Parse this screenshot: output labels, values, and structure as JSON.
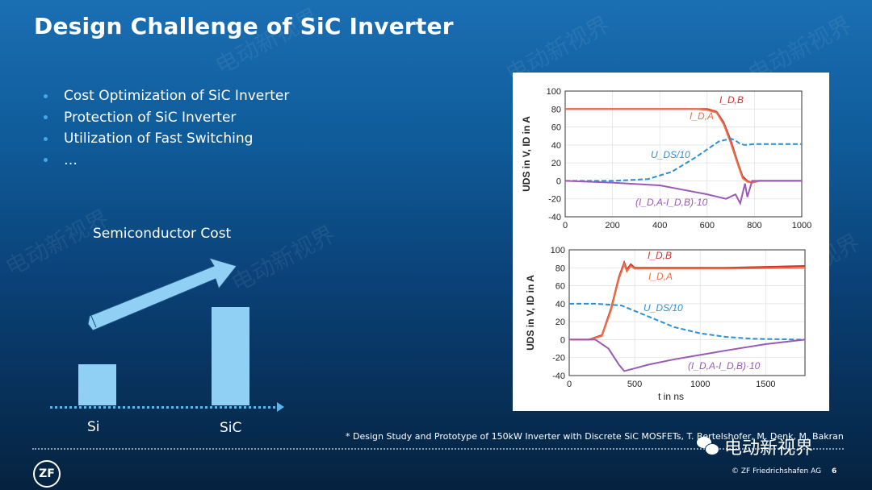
{
  "slide": {
    "title": "Design Challenge of SiC Inverter",
    "bullets": [
      "Cost Optimization of SiC Inverter",
      "Protection of SiC Inverter",
      "Utilization of Fast Switching",
      "…"
    ],
    "page_number": "6",
    "copyright": "© ZF Friedrichshafen AG",
    "footnote": "* Design Study and Prototype of 150kW Inverter with Discrete SiC MOSFETs, T. Bertelshofer, M. Denk, M. Bakran",
    "logo_text": "ZF",
    "wechat_account": "电动新视界",
    "watermark_text": "电动新视界"
  },
  "cost_chart": {
    "title": "Semiconductor Cost",
    "categories": [
      "Si",
      "SiC"
    ],
    "values": [
      1,
      2.4
    ]
  },
  "chart_data": [
    {
      "type": "line",
      "xlim": [
        0,
        1000
      ],
      "ylim": [
        -40,
        100
      ],
      "xticks": [
        0,
        200,
        400,
        600,
        800,
        1000
      ],
      "yticks": [
        -40,
        -20,
        0,
        20,
        40,
        60,
        80,
        100
      ],
      "ylabel": "UDS in V, ID in A",
      "series": [
        {
          "name": "I_D,B",
          "color": "#d0312d",
          "x": [
            0,
            200,
            400,
            550,
            600,
            640,
            670,
            700,
            730,
            750,
            770,
            790,
            820,
            1000
          ],
          "y": [
            80,
            80,
            80,
            80,
            80,
            77,
            65,
            45,
            20,
            5,
            0,
            -2,
            0,
            0
          ]
        },
        {
          "name": "I_D,A",
          "color": "#e8704a",
          "x": [
            0,
            200,
            400,
            550,
            600,
            640,
            670,
            700,
            730,
            750,
            770,
            790,
            820,
            1000
          ],
          "y": [
            80,
            80,
            80,
            80,
            79,
            76,
            63,
            42,
            18,
            3,
            -1,
            -2,
            0,
            0
          ]
        },
        {
          "name": "U_DS/10",
          "color": "#2d8fd6",
          "x": [
            0,
            200,
            350,
            450,
            550,
            650,
            700,
            720,
            740,
            760,
            800,
            1000
          ],
          "y": [
            0,
            0,
            2,
            10,
            26,
            44,
            47,
            45,
            41,
            40,
            41,
            41
          ]
        },
        {
          "name": "(I_D,A-I_D,B)·10",
          "color": "#9b59b6",
          "x": [
            0,
            200,
            400,
            500,
            600,
            680,
            720,
            740,
            760,
            770,
            790,
            1000
          ],
          "y": [
            0,
            -2,
            -5,
            -10,
            -15,
            -20,
            -15,
            -25,
            -3,
            -18,
            0,
            0
          ]
        }
      ],
      "labels": [
        "I_D,B",
        "I_D,A",
        "U_DS/10",
        "(I_D,A-I_D,B)·10"
      ]
    },
    {
      "type": "line",
      "xlim": [
        0,
        1800
      ],
      "ylim": [
        -40,
        100
      ],
      "xticks": [
        0,
        500,
        1000,
        1500
      ],
      "yticks": [
        -40,
        -20,
        0,
        20,
        40,
        60,
        80,
        100
      ],
      "xlabel": "t in ns",
      "ylabel": "UDS in V, ID in A",
      "series": [
        {
          "name": "I_D,B",
          "color": "#d0312d",
          "x": [
            0,
            150,
            250,
            320,
            380,
            420,
            440,
            470,
            500,
            600,
            800,
            1200,
            1800
          ],
          "y": [
            0,
            0,
            5,
            35,
            70,
            86,
            78,
            84,
            80,
            80,
            80,
            80,
            82
          ]
        },
        {
          "name": "I_D,A",
          "color": "#e8704a",
          "x": [
            0,
            150,
            250,
            320,
            380,
            420,
            440,
            470,
            500,
            600,
            800,
            1200,
            1800
          ],
          "y": [
            0,
            0,
            4,
            33,
            68,
            84,
            76,
            82,
            79,
            79,
            79,
            79,
            80
          ]
        },
        {
          "name": "U_DS/10",
          "color": "#2d8fd6",
          "x": [
            0,
            200,
            400,
            600,
            800,
            1000,
            1200,
            1400,
            1800
          ],
          "y": [
            40,
            40,
            38,
            26,
            14,
            7,
            3,
            1,
            0
          ]
        },
        {
          "name": "(I_D,A-I_D,B)·10",
          "color": "#9b59b6",
          "x": [
            0,
            200,
            300,
            380,
            420,
            500,
            600,
            800,
            1000,
            1200,
            1500,
            1800
          ],
          "y": [
            0,
            0,
            -10,
            -28,
            -35,
            -32,
            -28,
            -22,
            -17,
            -12,
            -5,
            0
          ]
        }
      ],
      "labels": [
        "I_D,B",
        "I_D,A",
        "U_DS/10",
        "(I_D,A-I_D,B)·10"
      ]
    }
  ]
}
